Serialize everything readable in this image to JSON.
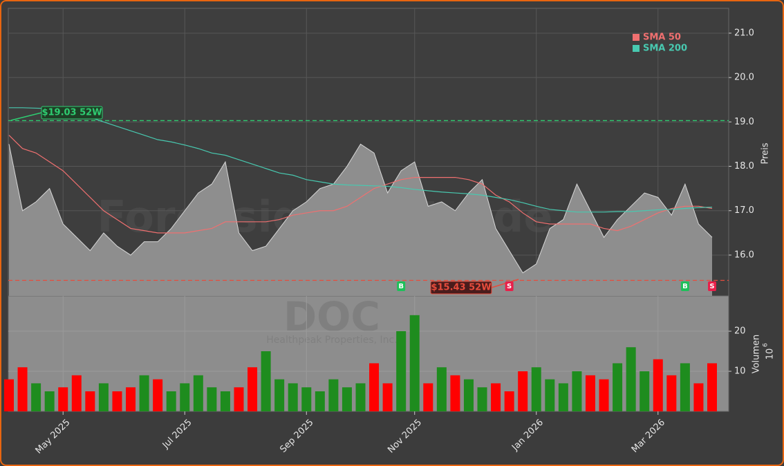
{
  "chart_data": [
    {
      "type": "area",
      "watermark": {
        "site": "Forexsignale.trade",
        "symbol": "DOC",
        "company": "Healthpeak Properties, Inc."
      },
      "ylabel": "Preis",
      "ylim": [
        15.08,
        21.56
      ],
      "yticks": [
        {
          "value": 16,
          "label": "16.0"
        },
        {
          "value": 17,
          "label": "17.0"
        },
        {
          "value": 18,
          "label": "18.0"
        },
        {
          "value": 19,
          "label": "19.0"
        },
        {
          "value": 20,
          "label": "20.0"
        },
        {
          "value": 21,
          "label": "21.0"
        }
      ],
      "grid": true,
      "color": "#8e8e8e",
      "values": [
        18.5,
        17.0,
        17.2,
        17.5,
        16.7,
        16.4,
        16.1,
        16.5,
        16.2,
        16.0,
        16.3,
        16.3,
        16.6,
        17.0,
        17.4,
        17.6,
        18.1,
        16.5,
        16.1,
        16.2,
        16.6,
        17.0,
        17.2,
        17.5,
        17.6,
        18.0,
        18.5,
        18.3,
        17.4,
        17.9,
        18.1,
        17.1,
        17.2,
        17.0,
        17.4,
        17.7,
        16.6,
        16.1,
        15.6,
        15.8,
        16.6,
        16.8,
        17.6,
        17.0,
        16.4,
        16.8,
        17.1,
        17.4,
        17.3,
        16.9,
        17.6,
        16.7,
        16.4
      ],
      "series": [
        {
          "name": "SMA 50",
          "color": "#f07070",
          "values": [
            18.7,
            18.4,
            18.3,
            18.1,
            17.9,
            17.6,
            17.3,
            17.0,
            16.8,
            16.6,
            16.55,
            16.5,
            16.5,
            16.5,
            16.55,
            16.6,
            16.75,
            16.75,
            16.75,
            16.75,
            16.8,
            16.9,
            16.95,
            17.0,
            17.0,
            17.1,
            17.3,
            17.5,
            17.6,
            17.7,
            17.75,
            17.75,
            17.75,
            17.75,
            17.7,
            17.6,
            17.35,
            17.2,
            16.95,
            16.75,
            16.7,
            16.7,
            16.7,
            16.7,
            16.6,
            16.55,
            16.65,
            16.8,
            16.95,
            17.05,
            17.1,
            17.1,
            17.05
          ]
        },
        {
          "name": "SMA 200",
          "color": "#48c9b0",
          "values": [
            19.32,
            19.32,
            19.31,
            19.3,
            19.28,
            19.25,
            19.1,
            19.0,
            18.9,
            18.8,
            18.7,
            18.6,
            18.55,
            18.48,
            18.4,
            18.3,
            18.25,
            18.15,
            18.05,
            17.95,
            17.85,
            17.8,
            17.7,
            17.65,
            17.6,
            17.58,
            17.57,
            17.56,
            17.55,
            17.52,
            17.48,
            17.45,
            17.42,
            17.4,
            17.38,
            17.35,
            17.3,
            17.25,
            17.18,
            17.1,
            17.03,
            17.0,
            16.97,
            16.97,
            16.97,
            16.98,
            16.98,
            17.0,
            17.02,
            17.03,
            17.05,
            17.07,
            17.08
          ]
        }
      ],
      "legend": "upper right",
      "hlines": [
        {
          "value": 19.03,
          "label": "$19.03 52W",
          "color": "#2ecc71"
        },
        {
          "value": 15.43,
          "label": "$15.43 52W",
          "color": "#e74c3c"
        }
      ],
      "signals": [
        null,
        null,
        null,
        null,
        null,
        null,
        null,
        null,
        null,
        null,
        null,
        null,
        null,
        null,
        null,
        null,
        null,
        null,
        null,
        null,
        null,
        null,
        null,
        null,
        null,
        null,
        null,
        null,
        null,
        "B",
        null,
        null,
        null,
        null,
        null,
        null,
        null,
        "S",
        null,
        null,
        null,
        null,
        null,
        null,
        null,
        null,
        null,
        null,
        null,
        null,
        "B",
        null,
        "S"
      ]
    },
    {
      "type": "bar",
      "ylabel": "Volumen",
      "yscale_label": {
        "base": "10",
        "exponent": "6"
      },
      "ylim": [
        0,
        28.8
      ],
      "yticks": [
        10,
        20
      ],
      "categories": [
        null,
        null,
        null,
        null,
        "May 2025",
        null,
        null,
        null,
        null,
        null,
        null,
        null,
        null,
        "Jul 2025",
        null,
        null,
        null,
        null,
        null,
        null,
        null,
        null,
        "Sep 2025",
        null,
        null,
        null,
        null,
        null,
        null,
        null,
        "Nov 2025",
        null,
        null,
        null,
        null,
        null,
        null,
        null,
        null,
        "Jan 2026",
        null,
        null,
        null,
        null,
        null,
        null,
        null,
        null,
        "Mar 2026",
        null,
        null,
        null,
        null
      ],
      "values": [
        8,
        11,
        7,
        5,
        6,
        9,
        5,
        7,
        5,
        6,
        9,
        8,
        5,
        7,
        9,
        6,
        5,
        6,
        11,
        15,
        8,
        7,
        6,
        5,
        8,
        6,
        7,
        12,
        7,
        20,
        24,
        7,
        11,
        9,
        8,
        6,
        7,
        5,
        10,
        11,
        8,
        7,
        10,
        9,
        8,
        12,
        16,
        10,
        13,
        9,
        12,
        7,
        12
      ],
      "colors": [
        "#ff0000",
        "#ff0000",
        "#1e8c1e",
        "#1e8c1e",
        "#ff0000",
        "#ff0000",
        "#ff0000",
        "#1e8c1e",
        "#ff0000",
        "#ff0000",
        "#1e8c1e",
        "#ff0000",
        "#1e8c1e",
        "#1e8c1e",
        "#1e8c1e",
        "#1e8c1e",
        "#1e8c1e",
        "#ff0000",
        "#ff0000",
        "#1e8c1e",
        "#1e8c1e",
        "#1e8c1e",
        "#1e8c1e",
        "#1e8c1e",
        "#1e8c1e",
        "#1e8c1e",
        "#1e8c1e",
        "#ff0000",
        "#ff0000",
        "#1e8c1e",
        "#1e8c1e",
        "#ff0000",
        "#1e8c1e",
        "#ff0000",
        "#1e8c1e",
        "#1e8c1e",
        "#ff0000",
        "#ff0000",
        "#ff0000",
        "#1e8c1e",
        "#1e8c1e",
        "#1e8c1e",
        "#1e8c1e",
        "#ff0000",
        "#ff0000",
        "#1e8c1e",
        "#1e8c1e",
        "#1e8c1e",
        "#ff0000",
        "#ff0000",
        "#1e8c1e",
        "#ff0000",
        "#ff0000"
      ]
    }
  ]
}
